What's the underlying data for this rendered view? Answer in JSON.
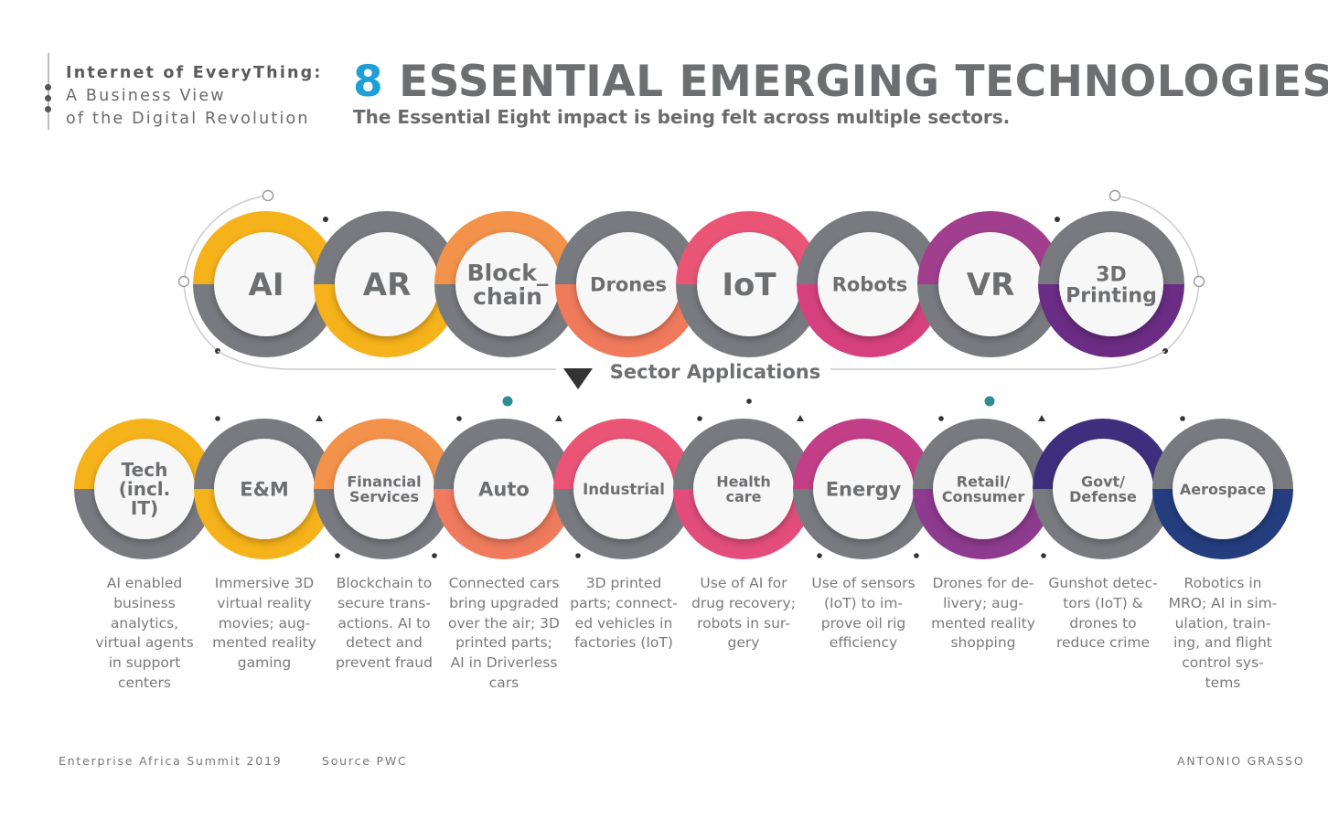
{
  "brand": {
    "lines": [
      "Internet of EveryThing:",
      "A Business View",
      "of the Digital Revolution"
    ]
  },
  "header": {
    "number": "8",
    "title": "ESSENTIAL EMERGING TECHNOLOGIES",
    "subtitle": "The Essential Eight impact is being felt across multiple sectors."
  },
  "technologies": [
    {
      "label": "AI",
      "color": "#f6b21a"
    },
    {
      "label": "AR",
      "color": "#f6b21a"
    },
    {
      "label": "Block_\nchain",
      "color": "#f3924a"
    },
    {
      "label": "Drones",
      "color": "#ef7a5c"
    },
    {
      "label": "IoT",
      "color": "#ea5576"
    },
    {
      "label": "Robots",
      "color": "#d6417d"
    },
    {
      "label": "VR",
      "color": "#a13f8e"
    },
    {
      "label": "3D\nPrinting",
      "color": "#6a2c84"
    }
  ],
  "section_label": "Sector Applications",
  "sectors": [
    {
      "label": "Tech\n(incl.\nIT)",
      "color": "#f6b21a",
      "description": "AI enabled\nbusiness\nanalytics,\nvirtual agents\nin support\ncenters"
    },
    {
      "label": "E&M",
      "color": "#f6b21a",
      "description": "Immersive 3D\nvirtual reality\nmovies; aug-\nmented reality\ngaming"
    },
    {
      "label": "Financial\nServices",
      "color": "#f3924a",
      "description": "Blockchain to\nsecure trans-\nactions. AI to\ndetect and\nprevent fraud"
    },
    {
      "label": "Auto",
      "color": "#ef7a5c",
      "description": "Connected cars\nbring upgraded\nover the air; 3D\nprinted parts;\nAI in Driverless\ncars"
    },
    {
      "label": "Industrial",
      "color": "#ea5576",
      "description": "3D printed\nparts; connect-\ned vehicles in\nfactories (IoT)"
    },
    {
      "label": "Health\ncare",
      "color": "#e24d7c",
      "description": "Use of AI for\ndrug recovery;\nrobots in sur-\ngery"
    },
    {
      "label": "Energy",
      "color": "#c23f88",
      "description": "Use of sensors\n(IoT) to im-\nprove oil rig\nefficiency"
    },
    {
      "label": "Retail/\nConsumer",
      "color": "#8d3a8f",
      "description": "Drones for de-\nlivery; aug-\nmented reality\nshopping"
    },
    {
      "label": "Govt/\nDefense",
      "color": "#3d2f7d",
      "description": "Gunshot detec-\ntors (IoT) &\ndrones to\nreduce crime"
    },
    {
      "label": "Aerospace",
      "color": "#233d7e",
      "description": "Robotics in\nMRO; AI in sim-\nulation, train-\ning, and flight\ncontrol sys-\ntems"
    }
  ],
  "footer": {
    "event": "Enterprise Africa Summit 2019",
    "source": "Source PWC",
    "author": "ANTONIO GRASSO"
  },
  "colors": {
    "grey_ring": "#787a80",
    "title_number": "#1e9fd8",
    "dot_teal": "#2e8c93"
  }
}
